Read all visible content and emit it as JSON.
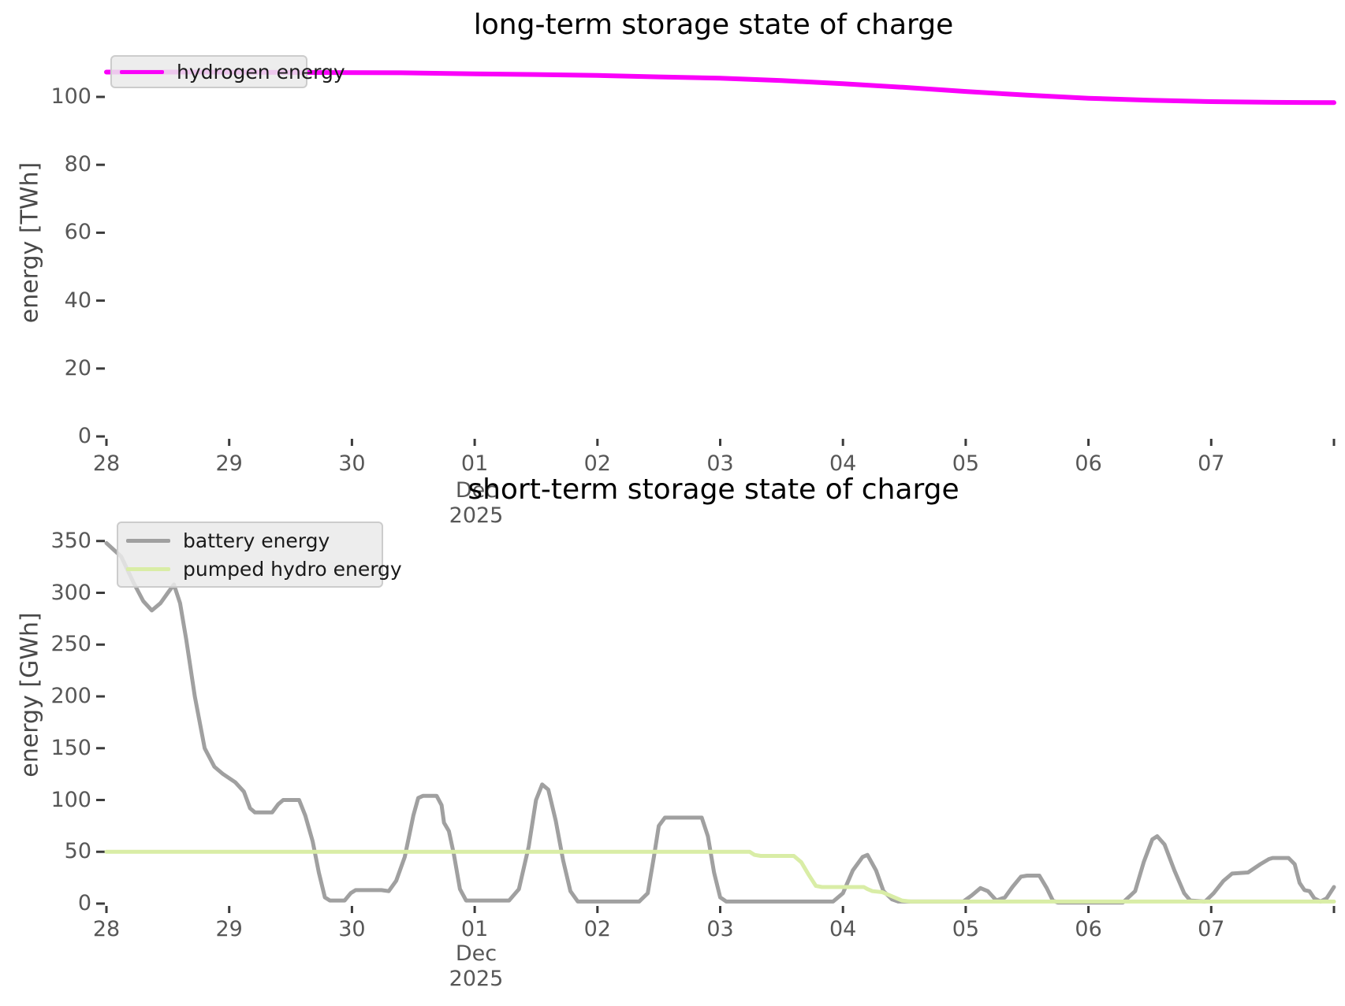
{
  "figure": {
    "background": "#ffffff",
    "tick_mark_color": "#3b3b3b",
    "tick_text_color": "#575757",
    "title_color": "#000000"
  },
  "chart_data": [
    {
      "type": "line",
      "title": "long-term storage state of charge",
      "ylabel": "energy [TWh]",
      "y_ticks": [
        0,
        20,
        40,
        60,
        80,
        100
      ],
      "ylim": [
        0,
        114.8
      ],
      "x_tick_labels": [
        "28",
        "29",
        "30",
        "01",
        "02",
        "03",
        "04",
        "05",
        "06",
        "07"
      ],
      "x_axis_month": "Dec",
      "x_axis_year": "2025",
      "x_range_days": [
        0,
        10
      ],
      "grid": false,
      "legend_position": "upper left",
      "series": [
        {
          "name": "hydrogen energy",
          "color": "#fa00fa",
          "stroke_width": 6,
          "points": [
            [
              0,
              107.3
            ],
            [
              0.8,
              107.3
            ],
            [
              1.6,
              107.2
            ],
            [
              2.4,
              107.1
            ],
            [
              3,
              106.8
            ],
            [
              3.5,
              106.6
            ],
            [
              4,
              106.3
            ],
            [
              4.5,
              105.9
            ],
            [
              5,
              105.5
            ],
            [
              5.5,
              104.8
            ],
            [
              6,
              103.9
            ],
            [
              6.5,
              102.8
            ],
            [
              7,
              101.6
            ],
            [
              7.5,
              100.5
            ],
            [
              8,
              99.6
            ],
            [
              8.5,
              99.0
            ],
            [
              9,
              98.6
            ],
            [
              9.5,
              98.4
            ],
            [
              10,
              98.3
            ]
          ]
        }
      ]
    },
    {
      "type": "line",
      "title": "short-term storage state of charge",
      "ylabel": "energy [GWh]",
      "y_ticks": [
        0,
        50,
        100,
        150,
        200,
        250,
        300,
        350
      ],
      "ylim": [
        0,
        368
      ],
      "x_tick_labels": [
        "28",
        "29",
        "30",
        "01",
        "02",
        "03",
        "04",
        "05",
        "06",
        "07"
      ],
      "x_axis_month": "Dec",
      "x_axis_year": "2025",
      "x_range_days": [
        0,
        10
      ],
      "grid": false,
      "legend_position": "upper left",
      "series": [
        {
          "name": "battery energy",
          "color": "#a0a0a0",
          "stroke_width": 5,
          "points": [
            [
              0,
              348
            ],
            [
              0.12,
              335
            ],
            [
              0.22,
              310
            ],
            [
              0.3,
              292
            ],
            [
              0.37,
              283
            ],
            [
              0.44,
              290
            ],
            [
              0.5,
              300
            ],
            [
              0.55,
              308
            ],
            [
              0.6,
              290
            ],
            [
              0.65,
              255
            ],
            [
              0.72,
              200
            ],
            [
              0.8,
              150
            ],
            [
              0.88,
              132
            ],
            [
              0.95,
              125
            ],
            [
              1.05,
              117
            ],
            [
              1.12,
              108
            ],
            [
              1.17,
              92
            ],
            [
              1.21,
              88
            ],
            [
              1.35,
              88
            ],
            [
              1.4,
              96
            ],
            [
              1.44,
              100
            ],
            [
              1.57,
              100
            ],
            [
              1.62,
              85
            ],
            [
              1.68,
              60
            ],
            [
              1.73,
              30
            ],
            [
              1.78,
              6
            ],
            [
              1.82,
              3
            ],
            [
              1.94,
              3
            ],
            [
              1.99,
              10
            ],
            [
              2.03,
              13
            ],
            [
              2.24,
              13
            ],
            [
              2.3,
              12
            ],
            [
              2.36,
              22
            ],
            [
              2.43,
              45
            ],
            [
              2.5,
              85
            ],
            [
              2.54,
              102
            ],
            [
              2.58,
              104
            ],
            [
              2.69,
              104
            ],
            [
              2.73,
              95
            ],
            [
              2.75,
              78
            ],
            [
              2.79,
              70
            ],
            [
              2.83,
              48
            ],
            [
              2.88,
              14
            ],
            [
              2.93,
              3
            ],
            [
              3.28,
              3
            ],
            [
              3.36,
              14
            ],
            [
              3.44,
              55
            ],
            [
              3.5,
              100
            ],
            [
              3.55,
              115
            ],
            [
              3.6,
              110
            ],
            [
              3.66,
              80
            ],
            [
              3.72,
              42
            ],
            [
              3.78,
              12
            ],
            [
              3.84,
              2
            ],
            [
              4.34,
              2
            ],
            [
              4.41,
              10
            ],
            [
              4.46,
              45
            ],
            [
              4.5,
              75
            ],
            [
              4.55,
              83
            ],
            [
              4.85,
              83
            ],
            [
              4.9,
              65
            ],
            [
              4.95,
              30
            ],
            [
              5.0,
              6
            ],
            [
              5.05,
              2
            ],
            [
              5.92,
              2
            ],
            [
              6.0,
              10
            ],
            [
              6.08,
              32
            ],
            [
              6.16,
              45
            ],
            [
              6.2,
              47
            ],
            [
              6.27,
              32
            ],
            [
              6.33,
              12
            ],
            [
              6.4,
              4
            ],
            [
              6.45,
              2
            ],
            [
              6.98,
              2
            ],
            [
              7.05,
              8
            ],
            [
              7.12,
              15
            ],
            [
              7.18,
              12
            ],
            [
              7.25,
              3
            ],
            [
              7.32,
              6
            ],
            [
              7.38,
              16
            ],
            [
              7.45,
              26
            ],
            [
              7.5,
              27
            ],
            [
              7.6,
              27
            ],
            [
              7.66,
              15
            ],
            [
              7.71,
              3
            ],
            [
              7.75,
              1
            ],
            [
              8.28,
              1
            ],
            [
              8.38,
              12
            ],
            [
              8.45,
              40
            ],
            [
              8.52,
              62
            ],
            [
              8.56,
              65
            ],
            [
              8.62,
              57
            ],
            [
              8.7,
              32
            ],
            [
              8.78,
              10
            ],
            [
              8.83,
              3
            ],
            [
              8.95,
              2
            ],
            [
              9.02,
              10
            ],
            [
              9.1,
              22
            ],
            [
              9.17,
              29
            ],
            [
              9.3,
              30
            ],
            [
              9.4,
              38
            ],
            [
              9.47,
              43
            ],
            [
              9.5,
              44
            ],
            [
              9.63,
              44
            ],
            [
              9.68,
              38
            ],
            [
              9.72,
              20
            ],
            [
              9.76,
              13
            ],
            [
              9.8,
              12
            ],
            [
              9.84,
              5
            ],
            [
              9.89,
              2
            ],
            [
              9.94,
              5
            ],
            [
              10,
              16
            ]
          ]
        },
        {
          "name": "pumped hydro energy",
          "color": "#d9eda6",
          "stroke_width": 5,
          "points": [
            [
              0,
              50
            ],
            [
              5.24,
              50
            ],
            [
              5.28,
              47
            ],
            [
              5.33,
              46
            ],
            [
              5.6,
              46
            ],
            [
              5.66,
              40
            ],
            [
              5.72,
              28
            ],
            [
              5.78,
              17
            ],
            [
              5.83,
              16
            ],
            [
              6.17,
              16
            ],
            [
              6.2,
              14
            ],
            [
              6.24,
              12
            ],
            [
              6.32,
              11
            ],
            [
              6.4,
              7
            ],
            [
              6.48,
              3
            ],
            [
              6.55,
              2
            ],
            [
              10,
              2
            ]
          ]
        }
      ]
    }
  ]
}
